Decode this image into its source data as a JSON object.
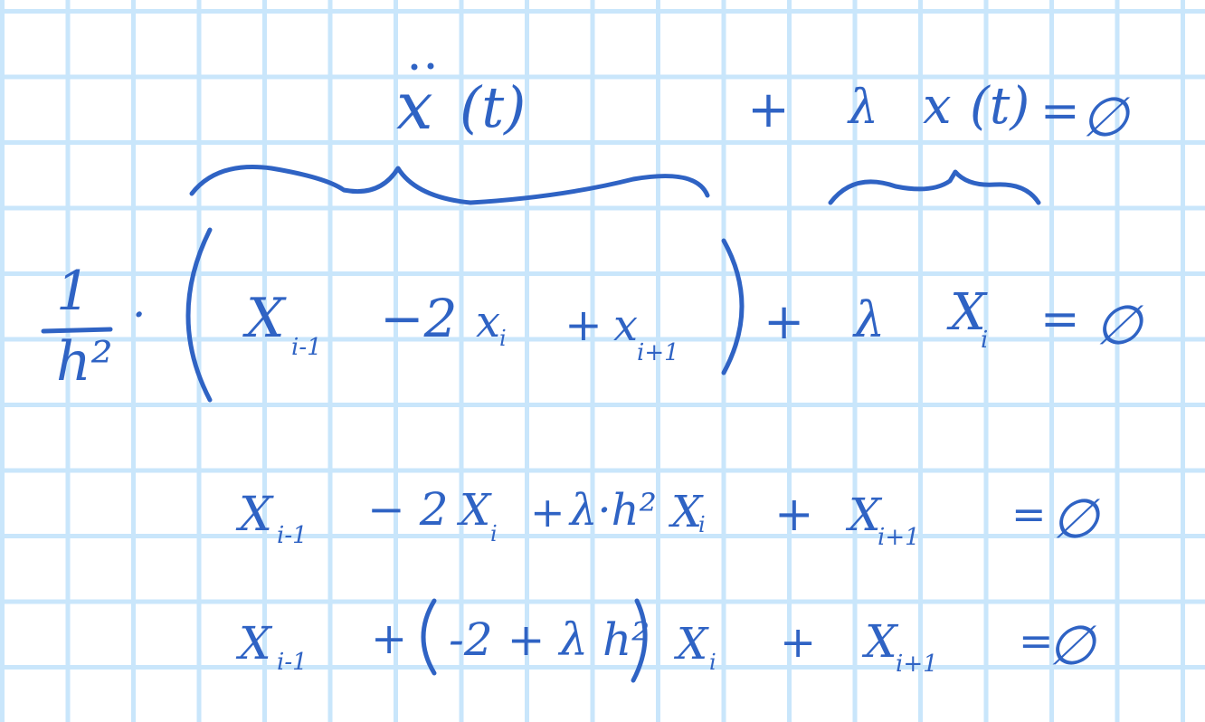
{
  "ink_color": "#2f63c4",
  "grid_color": "#c9e6fb",
  "line1": {
    "x_ddot": "x",
    "t_paren": "(t)",
    "plus": "+",
    "lambda": "λ",
    "x": "x",
    "t_paren2": "(t)",
    "equals": "=",
    "zero": "∅"
  },
  "line2": {
    "one": "1",
    "h2": "h²",
    "dot": "·",
    "x_prev": "X",
    "sub_prev": "i-1",
    "minus2": "−2",
    "x_i": "x",
    "sub_i": "i",
    "plus": "+",
    "x_next": "x",
    "sub_next": "i+1",
    "plus2": "+",
    "lambda": "λ",
    "X_i": "X",
    "sub_Xi": "i",
    "equals": "=",
    "zero": "∅"
  },
  "line3": {
    "x_prev": "X",
    "sub_prev": "i-1",
    "minus2": "− 2",
    "x_i": "X",
    "sub_i": "i",
    "plus": "+",
    "lambda_h2": "λ·h²",
    "x_i2": "X",
    "sub_i2": "i",
    "plus2": "+",
    "x_next": "X",
    "sub_next": "i+1",
    "equals": "=",
    "zero": "∅"
  },
  "line4": {
    "x_prev": "X",
    "sub_prev": "i-1",
    "plus": "+",
    "inner": "-2 + λ h²",
    "x_i": "X",
    "sub_i": "i",
    "plus2": "+",
    "x_next": "X",
    "sub_next": "i+1",
    "equals": "=",
    "zero": "∅"
  }
}
